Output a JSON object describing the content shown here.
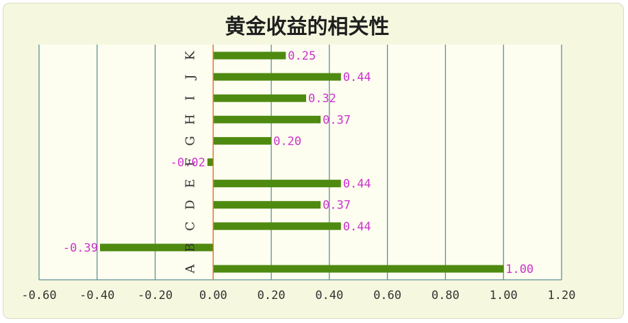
{
  "chart_data": {
    "type": "bar",
    "orientation": "horizontal",
    "title": "黄金收益的相关性",
    "categories": [
      "A",
      "B",
      "C",
      "D",
      "E",
      "F",
      "G",
      "H",
      "I",
      "J",
      "K"
    ],
    "values": [
      1.0,
      -0.39,
      0.44,
      0.37,
      0.44,
      -0.02,
      0.2,
      0.37,
      0.32,
      0.44,
      0.25
    ],
    "data_labels": [
      "1.00",
      "-0.39",
      "0.44",
      "0.37",
      "0.44",
      "-0.02",
      "0.20",
      "0.37",
      "0.32",
      "0.44",
      "0.25"
    ],
    "xlim": [
      -0.6,
      1.2
    ],
    "xticks": [
      "-0.60",
      "-0.40",
      "-0.20",
      "0.00",
      "0.20",
      "0.40",
      "0.60",
      "0.80",
      "1.00",
      "1.20"
    ],
    "grid": true,
    "legend": "none",
    "colors": {
      "bar": "#4f8a10",
      "label": "#cc33cc",
      "gridline": "#5b8f95",
      "zero_axis": "#e8762a",
      "plot_background": "#fdfdf0",
      "frame_background": "#f5f8de"
    }
  }
}
